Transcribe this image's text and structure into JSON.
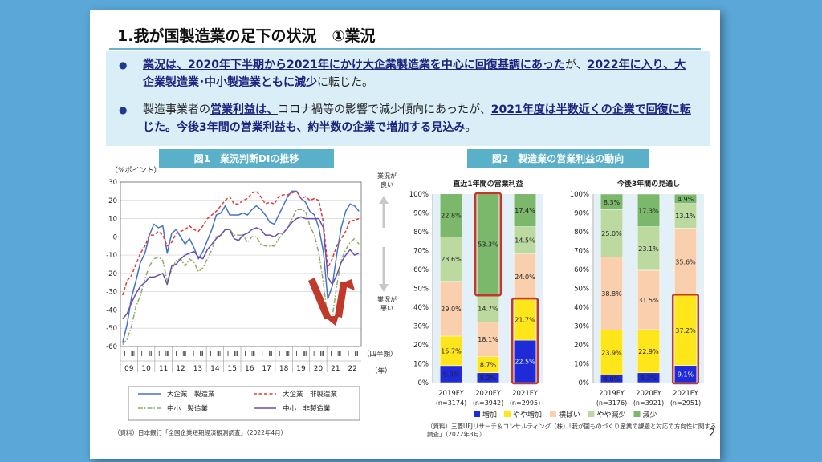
{
  "title": "1.我が国製造業の足下の状況　①業況",
  "summary": {
    "bullet1": {
      "p1": "業況は、2020年下半期から2021年にかけ大企業製造業を中心に回復基調にあった",
      "p2": "が、",
      "p3": "2022年に入り、大企業製造業･中小製造業ともに減少",
      "p4": "に転じた。"
    },
    "bullet2": {
      "p1": "製造事業者の",
      "p2": "営業利益は、",
      "p3": "コロナ禍等の影響で減少傾向にあったが、",
      "p4": "2021年度は半数近くの企業で回復に転じた",
      "p5": "。今後3年間の営業利益も、約半数の企業で増加する見込み",
      "p6": "。"
    }
  },
  "fig1_label": "図1　業況判断DIの推移",
  "fig2_label": "図2　製造業の営業利益の動向",
  "source1": "（資料）日本銀行「全国企業短期経済観測調査」（2022年4月）",
  "source2": "（資料）三菱UFJリサーチ＆コンサルティング（株）「我が国ものづくり産業の課題と対応の方向性に関する調査」（2022年3月）",
  "page_number": "2",
  "colors": {
    "large_mfg": "#4472c4",
    "large_nonmfg": "#e03a3a",
    "small_mfg": "#8faa6a",
    "small_nonmfg": "#6a4fa8",
    "increase": "#1f2bd6",
    "slight_increase": "#ffe61a",
    "flat": "#f9cfae",
    "slight_decrease": "#bcd9a0",
    "decrease": "#7bb86b",
    "highlight_border": "#c0392b",
    "fig_label_bg": "#5ab0c8"
  },
  "chart_data": [
    {
      "type": "line",
      "title": "業況判断DIの推移",
      "y_unit_label": "（%ポイント）",
      "xlabel": "（年）",
      "x_half_label": "（四半期）",
      "ylim": [
        -60,
        30
      ],
      "y_ticks": [
        "30",
        "20",
        "10",
        "0",
        "-10",
        "-20",
        "-30",
        "-40",
        "-50",
        "-60"
      ],
      "quarter_marks": [
        "Ⅰ",
        "Ⅲ"
      ],
      "year_labels": [
        "09",
        "10",
        "11",
        "12",
        "13",
        "14",
        "15",
        "16",
        "17",
        "18",
        "19",
        "20",
        "21",
        "22"
      ],
      "annotation_up": "業況が良い",
      "annotation_down": "業況が悪い",
      "series": [
        {
          "name": "大企業　製造業",
          "style": "solid",
          "values": [
            -58,
            -48,
            -33,
            -24,
            -14,
            -9,
            1,
            7,
            5,
            6,
            -9,
            2,
            4,
            0,
            -4,
            -1,
            -6,
            -12,
            -8,
            -2,
            4,
            12,
            13,
            17,
            12,
            12,
            12,
            13,
            12,
            15,
            17,
            15,
            12,
            8,
            7,
            12,
            17,
            22,
            25,
            25,
            21,
            19,
            14,
            12,
            5,
            -8,
            -34,
            -27,
            -10,
            5,
            14,
            18,
            17,
            14
          ]
        },
        {
          "name": "大企業　非製造業",
          "style": "dashed",
          "values": [
            -32,
            -24,
            -21,
            -15,
            -9,
            -5,
            1,
            1,
            3,
            1,
            -5,
            -3,
            2,
            3,
            4,
            6,
            4,
            3,
            6,
            10,
            12,
            14,
            17,
            20,
            22,
            18,
            18,
            20,
            21,
            24,
            25,
            22,
            18,
            19,
            18,
            22,
            23,
            23,
            24,
            25,
            21,
            22,
            20,
            21,
            20,
            8,
            -17,
            -12,
            -5,
            -1,
            3,
            9,
            9,
            10
          ]
        },
        {
          "name": "中小　製造業",
          "style": "dashdot",
          "values": [
            -59,
            -56,
            -49,
            -38,
            -32,
            -23,
            -16,
            -12,
            -11,
            -13,
            -24,
            -18,
            -13,
            -12,
            -16,
            -12,
            -14,
            -19,
            -17,
            -12,
            -7,
            0,
            1,
            4,
            4,
            1,
            1,
            1,
            -3,
            0,
            0,
            -4,
            -5,
            -5,
            -5,
            -1,
            2,
            5,
            10,
            15,
            15,
            14,
            6,
            1,
            -9,
            -25,
            -45,
            -44,
            -27,
            -13,
            -7,
            -3,
            -1,
            -4
          ]
        },
        {
          "name": "中小　非製造業",
          "style": "solid",
          "values": [
            -45,
            -42,
            -36,
            -31,
            -27,
            -25,
            -22,
            -22,
            -21,
            -20,
            -26,
            -16,
            -15,
            -12,
            -10,
            -9,
            -8,
            -11,
            -12,
            -7,
            -4,
            -1,
            1,
            4,
            4,
            -1,
            -2,
            1,
            2,
            4,
            5,
            4,
            1,
            1,
            0,
            2,
            2,
            5,
            8,
            10,
            11,
            10,
            10,
            10,
            10,
            5,
            -22,
            -26,
            -21,
            -14,
            -10,
            -7,
            -10,
            -9
          ]
        }
      ]
    },
    {
      "type": "bar",
      "stacked": true,
      "title": "直近1年間の営業利益",
      "categories": [
        "2019FY",
        "2020FY",
        "2021FY"
      ],
      "n_labels": [
        "(n=3174)",
        "(n=3942)",
        "(n=2995)"
      ],
      "y_ticks": [
        "100%",
        "90%",
        "80%",
        "70%",
        "60%",
        "50%",
        "40%",
        "30%",
        "20%",
        "10%",
        "0%"
      ],
      "series": [
        {
          "name": "増加",
          "values": [
            9.0,
            5.2,
            22.5
          ]
        },
        {
          "name": "やや増加",
          "values": [
            15.7,
            8.7,
            21.7
          ]
        },
        {
          "name": "横ばい",
          "values": [
            29.0,
            18.1,
            24.0
          ]
        },
        {
          "name": "やや減少",
          "values": [
            23.6,
            14.7,
            14.5
          ]
        },
        {
          "name": "減少",
          "values": [
            22.8,
            53.3,
            17.4
          ]
        }
      ]
    },
    {
      "type": "bar",
      "stacked": true,
      "title": "今後3年間の見通し",
      "categories": [
        "2019FY",
        "2020FY",
        "2021FY"
      ],
      "n_labels": [
        "(n=3176)",
        "(n=3921)",
        "(n=2951)"
      ],
      "y_ticks": [
        "100%",
        "90%",
        "80%",
        "70%",
        "60%",
        "50%",
        "40%",
        "30%",
        "20%",
        "10%",
        "0%"
      ],
      "series": [
        {
          "name": "増加",
          "values": [
            4.0,
            5.2,
            9.1
          ]
        },
        {
          "name": "やや増加",
          "values": [
            23.9,
            22.9,
            37.2
          ]
        },
        {
          "name": "横ばい",
          "values": [
            38.8,
            31.5,
            35.6
          ]
        },
        {
          "name": "やや減少",
          "values": [
            25.0,
            23.1,
            13.1
          ]
        },
        {
          "name": "減少",
          "values": [
            8.3,
            17.3,
            4.9
          ]
        }
      ]
    }
  ]
}
